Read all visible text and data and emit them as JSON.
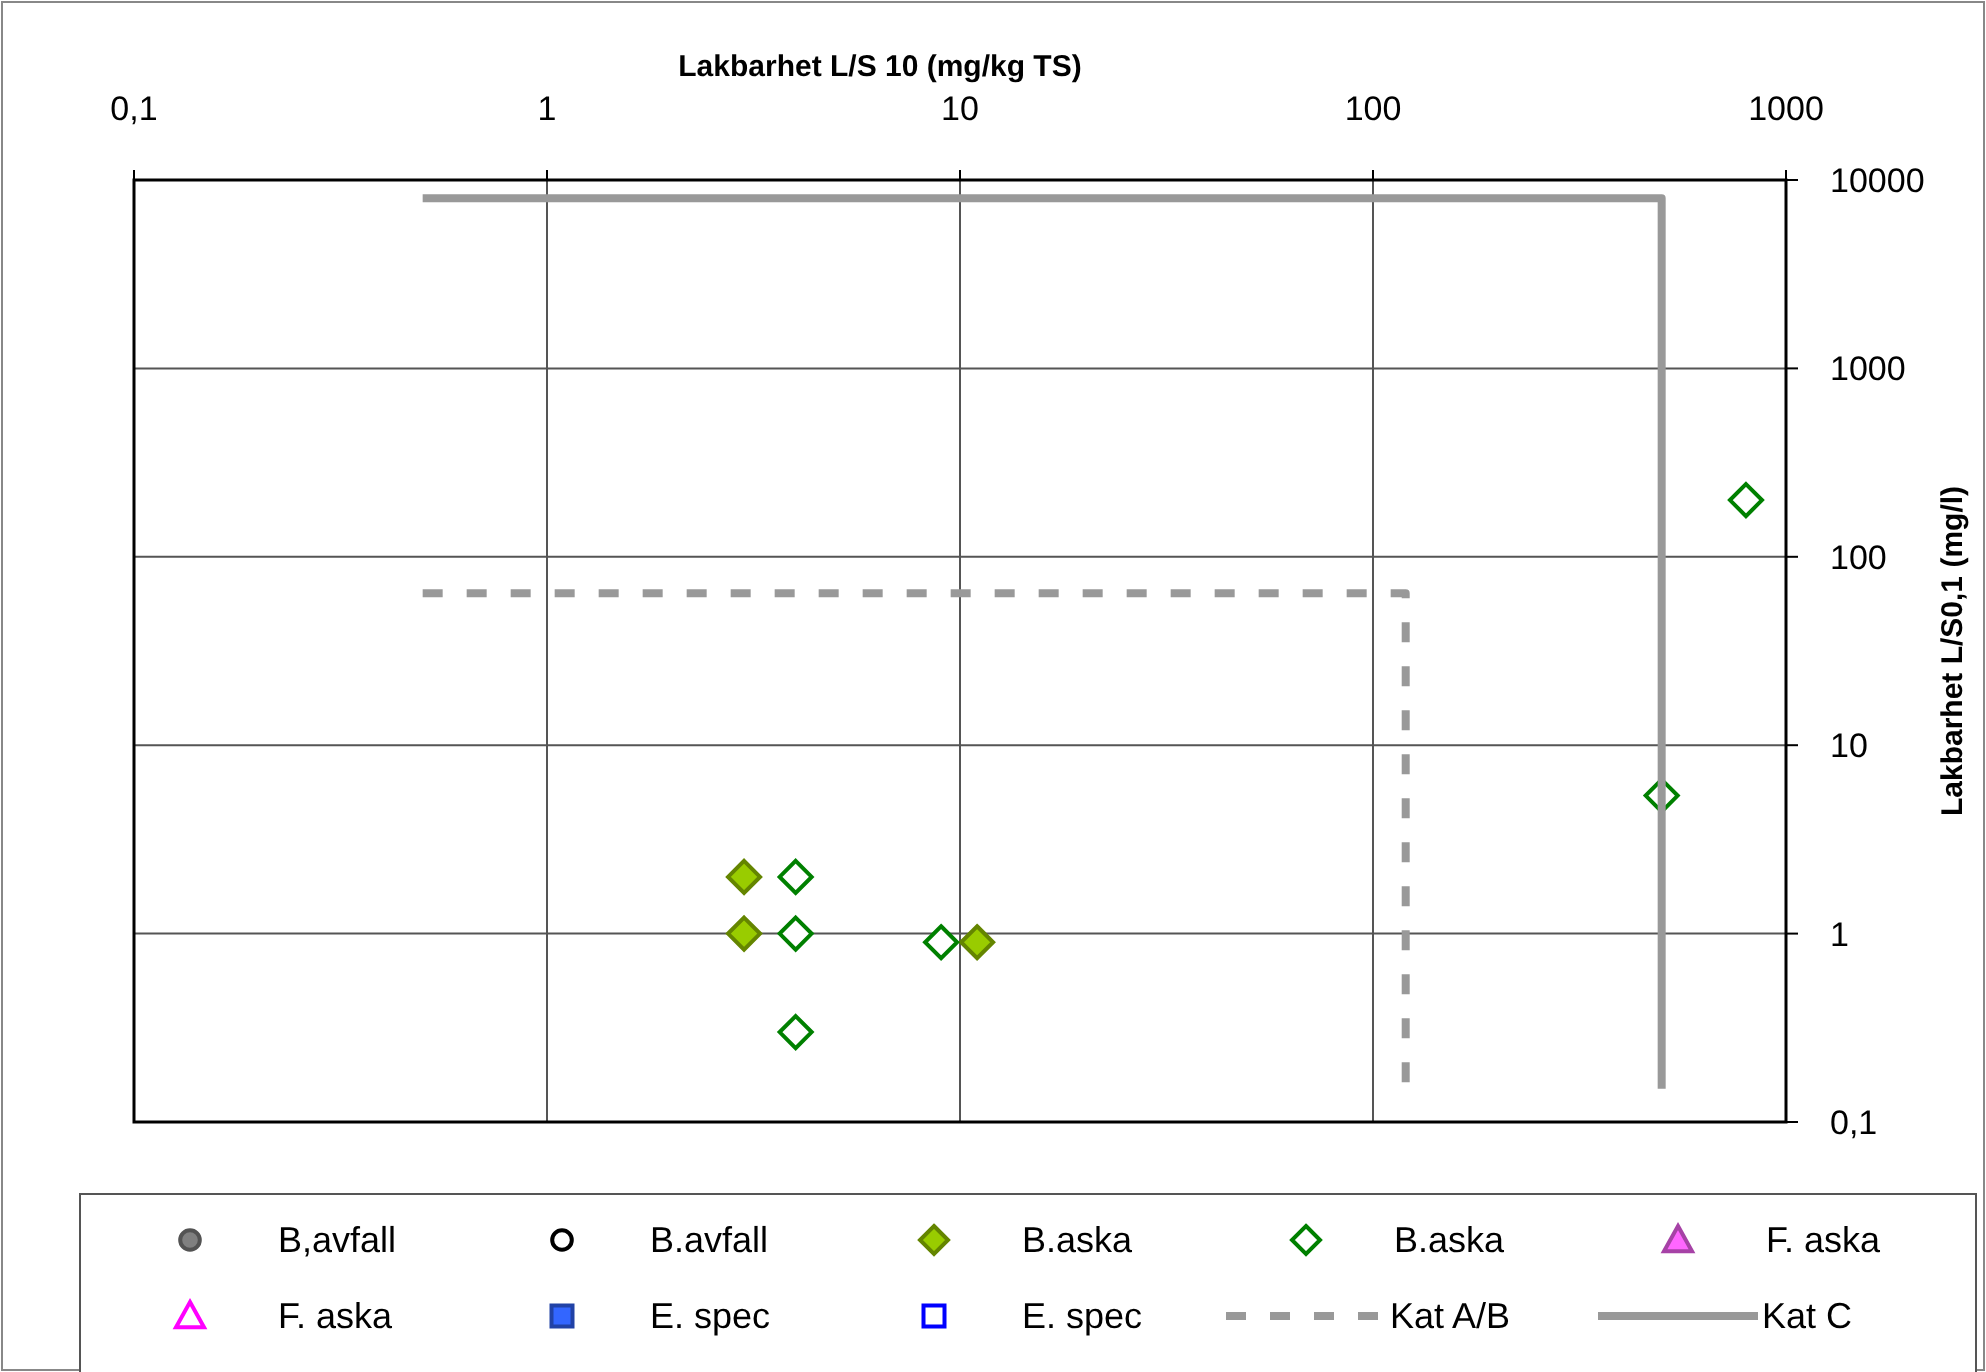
{
  "chart_data": {
    "type": "scatter",
    "xlabel": "Lakbarhet L/S 10 (mg/kg TS)",
    "ylabel": "Lakbarhet L/S0,1 (mg/l)",
    "log": "xy",
    "grid": true,
    "legend": "bottom",
    "xlim": [
      0.1,
      1000
    ],
    "xticks": [
      {
        "value": 0.1,
        "label": "0,1"
      },
      1,
      10,
      100,
      1000
    ],
    "ylim": [
      0.1,
      10000
    ],
    "yticks": [
      {
        "value": 0.1,
        "label": "0,1"
      },
      1,
      10,
      100,
      1000,
      10000
    ],
    "series": [
      {
        "name": "B,avfall",
        "color": "#808080",
        "marker": "circle"
      },
      {
        "name": "B.avfall",
        "color": "#000000",
        "marker": "circle"
      },
      {
        "name": "B.aska",
        "color": "#99cc00",
        "marker": "diamond",
        "x": [
          3,
          3,
          11
        ],
        "values": [
          2,
          1,
          0.9
        ]
      },
      {
        "name": "B.aska",
        "color": "#008000",
        "marker": "diamond",
        "x": [
          4,
          4,
          4,
          9,
          500,
          800
        ],
        "values": [
          2,
          1,
          0.3,
          0.9,
          5.4,
          200
        ]
      },
      {
        "name": "F. aska",
        "color": "#ff66ff",
        "marker": "triangle"
      },
      {
        "name": "F. aska",
        "color": "#ff00ff",
        "marker": "triangle"
      },
      {
        "name": "E. spec",
        "color": "#3366ff",
        "marker": "square"
      },
      {
        "name": "E. spec",
        "color": "#0000ff",
        "marker": "square"
      },
      {
        "name": "Kat A/B",
        "type": "line",
        "color": "#999999",
        "line_style": "dashed",
        "x": [
          0.5,
          120,
          120
        ],
        "values": [
          64,
          64,
          0.15
        ]
      },
      {
        "name": "Kat C",
        "type": "line",
        "color": "#999999",
        "line_style": "solid",
        "x": [
          0.5,
          500,
          500
        ],
        "values": [
          8000,
          8000,
          0.15
        ]
      }
    ]
  }
}
